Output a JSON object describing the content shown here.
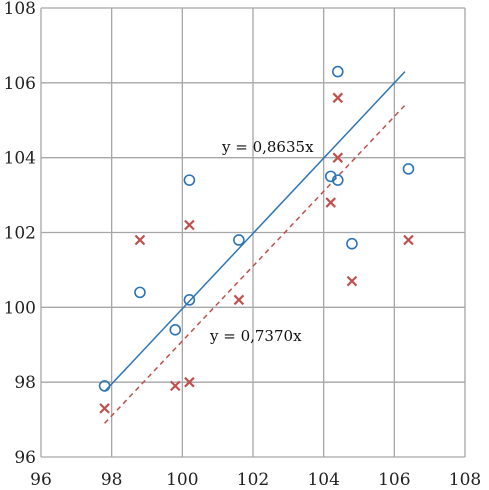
{
  "chart_data": {
    "type": "scatter",
    "xlim": [
      96,
      108
    ],
    "ylim": [
      96,
      108
    ],
    "x_ticks": [
      96,
      98,
      100,
      102,
      104,
      106,
      108
    ],
    "y_ticks": [
      96,
      98,
      100,
      102,
      104,
      106,
      108
    ],
    "x_tick_labels": [
      "96",
      "98",
      "100",
      "102",
      "104",
      "106",
      "108"
    ],
    "y_tick_labels": [
      "96",
      "98",
      "100",
      "102",
      "104",
      "106",
      "108"
    ],
    "grid": true,
    "series": [
      {
        "marker": "circle",
        "color": "#2e75b6",
        "points": [
          [
            97.8,
            97.9
          ],
          [
            98.8,
            100.4
          ],
          [
            99.8,
            99.4
          ],
          [
            100.2,
            100.2
          ],
          [
            100.2,
            103.4
          ],
          [
            101.6,
            101.8
          ],
          [
            104.2,
            103.5
          ],
          [
            104.4,
            103.4
          ],
          [
            104.4,
            106.3
          ],
          [
            104.8,
            101.7
          ],
          [
            106.4,
            103.7
          ]
        ],
        "trendline": {
          "equation": "y = 0,8635x",
          "from": [
            97.8,
            97.75
          ],
          "to": [
            106.3,
            106.3
          ],
          "style": "solid"
        }
      },
      {
        "marker": "cross",
        "color": "#c0504d",
        "points": [
          [
            97.8,
            97.3
          ],
          [
            98.8,
            101.8
          ],
          [
            99.8,
            97.9
          ],
          [
            100.2,
            98.0
          ],
          [
            100.2,
            102.2
          ],
          [
            101.6,
            100.2
          ],
          [
            104.2,
            102.8
          ],
          [
            104.4,
            104.0
          ],
          [
            104.4,
            105.6
          ],
          [
            104.8,
            100.7
          ],
          [
            106.4,
            101.8
          ]
        ],
        "trendline": {
          "equation": "y = 0,7370x",
          "from": [
            97.8,
            96.9
          ],
          "to": [
            106.3,
            105.4
          ],
          "style": "dashed"
        }
      }
    ]
  }
}
